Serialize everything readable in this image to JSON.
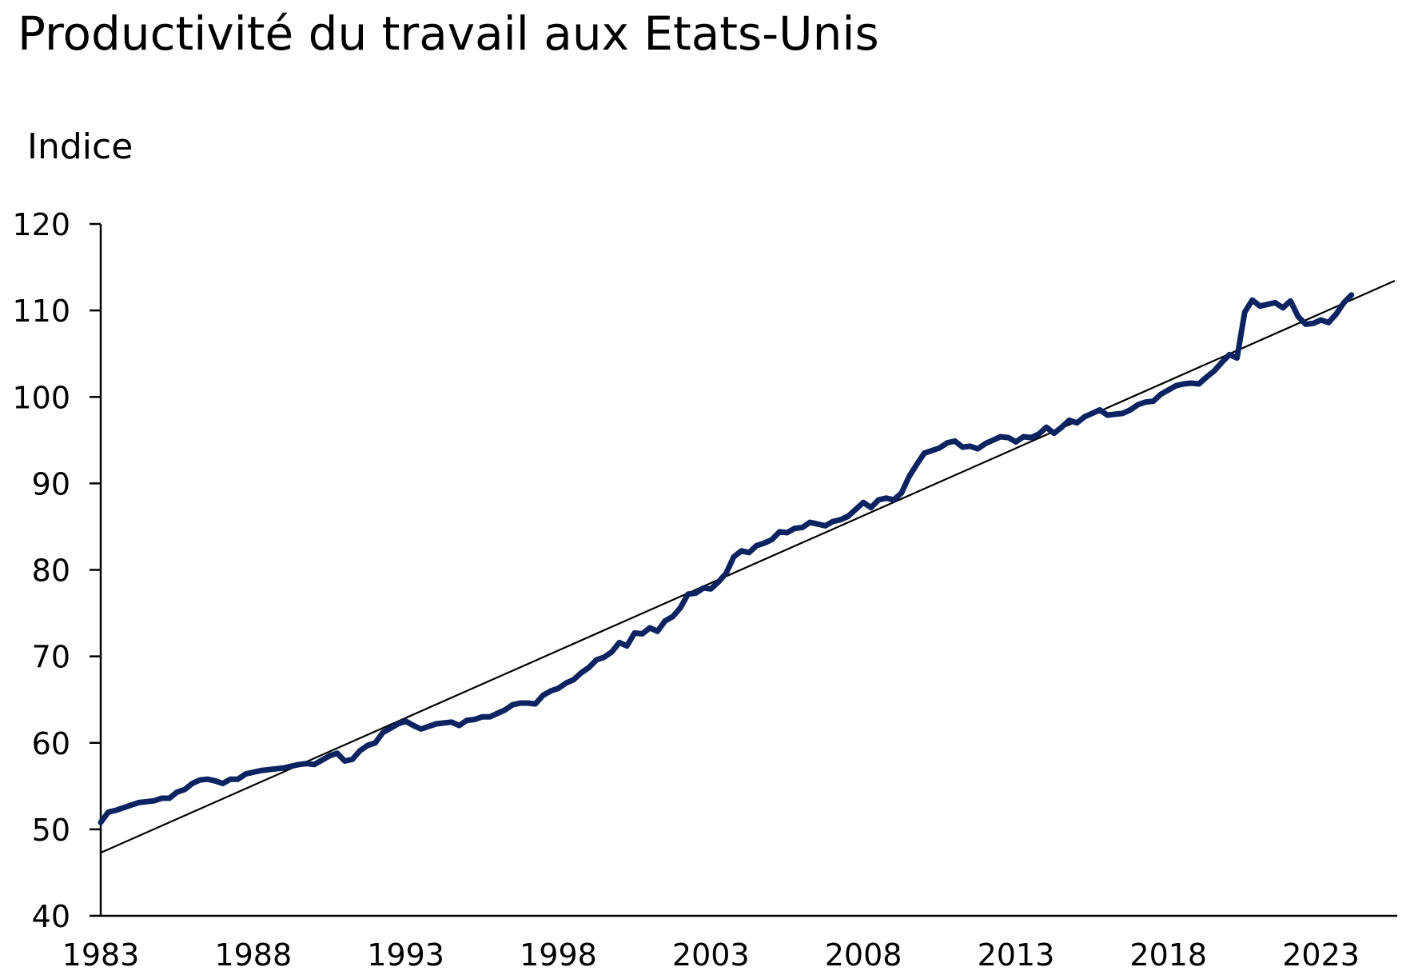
{
  "chart_data": {
    "type": "line",
    "title": "Productivité du travail aux Etats-Unis",
    "ylabel": "Indice",
    "xlabel": "",
    "ylim": [
      40,
      120
    ],
    "xlim": [
      1983,
      2025.5
    ],
    "yticks": [
      40,
      50,
      60,
      70,
      80,
      90,
      100,
      110,
      120
    ],
    "xticks": [
      1983,
      1988,
      1993,
      1998,
      2003,
      2008,
      2013,
      2018,
      2023
    ],
    "grid": false,
    "legend": "none",
    "series": [
      {
        "style": "thick",
        "color": "#0b2461",
        "x": [
          1983.0,
          1983.25,
          1983.5,
          1983.75,
          1984.0,
          1984.25,
          1984.5,
          1984.75,
          1985.0,
          1985.25,
          1985.5,
          1985.75,
          1986.0,
          1986.25,
          1986.5,
          1986.75,
          1987.0,
          1987.25,
          1987.5,
          1987.75,
          1988.0,
          1988.25,
          1988.5,
          1988.75,
          1989.0,
          1989.25,
          1989.5,
          1989.75,
          1990.0,
          1990.25,
          1990.5,
          1990.75,
          1991.0,
          1991.25,
          1991.5,
          1991.75,
          1992.0,
          1992.25,
          1992.5,
          1992.75,
          1993.0,
          1993.25,
          1993.5,
          1993.75,
          1994.0,
          1994.25,
          1994.5,
          1994.75,
          1995.0,
          1995.25,
          1995.5,
          1995.75,
          1996.0,
          1996.25,
          1996.5,
          1996.75,
          1997.0,
          1997.25,
          1997.5,
          1997.75,
          1998.0,
          1998.25,
          1998.5,
          1998.75,
          1999.0,
          1999.25,
          1999.5,
          1999.75,
          2000.0,
          2000.25,
          2000.5,
          2000.75,
          2001.0,
          2001.25,
          2001.5,
          2001.75,
          2002.0,
          2002.25,
          2002.5,
          2002.75,
          2003.0,
          2003.25,
          2003.5,
          2003.75,
          2004.0,
          2004.25,
          2004.5,
          2004.75,
          2005.0,
          2005.25,
          2005.5,
          2005.75,
          2006.0,
          2006.25,
          2006.5,
          2006.75,
          2007.0,
          2007.25,
          2007.5,
          2007.75,
          2008.0,
          2008.25,
          2008.5,
          2008.75,
          2009.0,
          2009.25,
          2009.5,
          2009.75,
          2010.0,
          2010.25,
          2010.5,
          2010.75,
          2011.0,
          2011.25,
          2011.5,
          2011.75,
          2012.0,
          2012.25,
          2012.5,
          2012.75,
          2013.0,
          2013.25,
          2013.5,
          2013.75,
          2014.0,
          2014.25,
          2014.5,
          2014.75,
          2015.0,
          2015.25,
          2015.5,
          2015.75,
          2016.0,
          2016.25,
          2016.5,
          2016.75,
          2017.0,
          2017.25,
          2017.5,
          2017.75,
          2018.0,
          2018.25,
          2018.5,
          2018.75,
          2019.0,
          2019.25,
          2019.5,
          2019.75,
          2020.0,
          2020.25,
          2020.5,
          2020.75,
          2021.0,
          2021.25,
          2021.5,
          2021.75,
          2022.0,
          2022.25,
          2022.5,
          2022.75,
          2023.0,
          2023.25,
          2023.5,
          2023.75,
          2024.0
        ],
        "values": [
          50.8,
          52.0,
          52.2,
          52.5,
          52.8,
          53.1,
          53.2,
          53.3,
          53.6,
          53.6,
          54.3,
          54.6,
          55.3,
          55.7,
          55.8,
          55.6,
          55.3,
          55.8,
          55.8,
          56.4,
          56.6,
          56.8,
          56.9,
          57.0,
          57.1,
          57.3,
          57.5,
          57.6,
          57.5,
          58.0,
          58.5,
          58.8,
          57.9,
          58.1,
          59.1,
          59.7,
          60.0,
          61.2,
          61.7,
          62.2,
          62.5,
          62.0,
          61.6,
          61.9,
          62.2,
          62.3,
          62.4,
          62.0,
          62.6,
          62.7,
          63.0,
          63.0,
          63.4,
          63.8,
          64.4,
          64.6,
          64.6,
          64.5,
          65.5,
          66.0,
          66.3,
          66.9,
          67.3,
          68.1,
          68.7,
          69.6,
          69.9,
          70.5,
          71.6,
          71.2,
          72.7,
          72.6,
          73.3,
          72.9,
          74.1,
          74.6,
          75.6,
          77.2,
          77.3,
          77.9,
          77.8,
          78.6,
          79.6,
          81.5,
          82.2,
          82.0,
          82.8,
          83.1,
          83.5,
          84.4,
          84.3,
          84.8,
          84.9,
          85.5,
          85.3,
          85.1,
          85.6,
          85.8,
          86.2,
          87.0,
          87.8,
          87.2,
          88.1,
          88.3,
          88.1,
          88.9,
          90.8,
          92.2,
          93.5,
          93.8,
          94.1,
          94.7,
          94.9,
          94.2,
          94.3,
          94.0,
          94.6,
          95.0,
          95.4,
          95.3,
          94.8,
          95.4,
          95.3,
          95.7,
          96.5,
          95.8,
          96.5,
          97.3,
          97.0,
          97.7,
          98.1,
          98.5,
          97.9,
          98.0,
          98.1,
          98.5,
          99.1,
          99.4,
          99.5,
          100.3,
          100.8,
          101.3,
          101.5,
          101.6,
          101.5,
          102.3,
          103.0,
          104.0,
          104.9,
          104.5,
          109.8,
          111.2,
          110.5,
          110.7,
          110.9,
          110.3,
          111.1,
          109.3,
          108.4,
          108.5,
          108.9,
          108.6,
          109.6,
          110.9,
          111.8
        ]
      },
      {
        "style": "thin",
        "color": "#000000",
        "x": [
          1983.0,
          2025.4
        ],
        "values": [
          47.3,
          113.4
        ]
      }
    ]
  }
}
